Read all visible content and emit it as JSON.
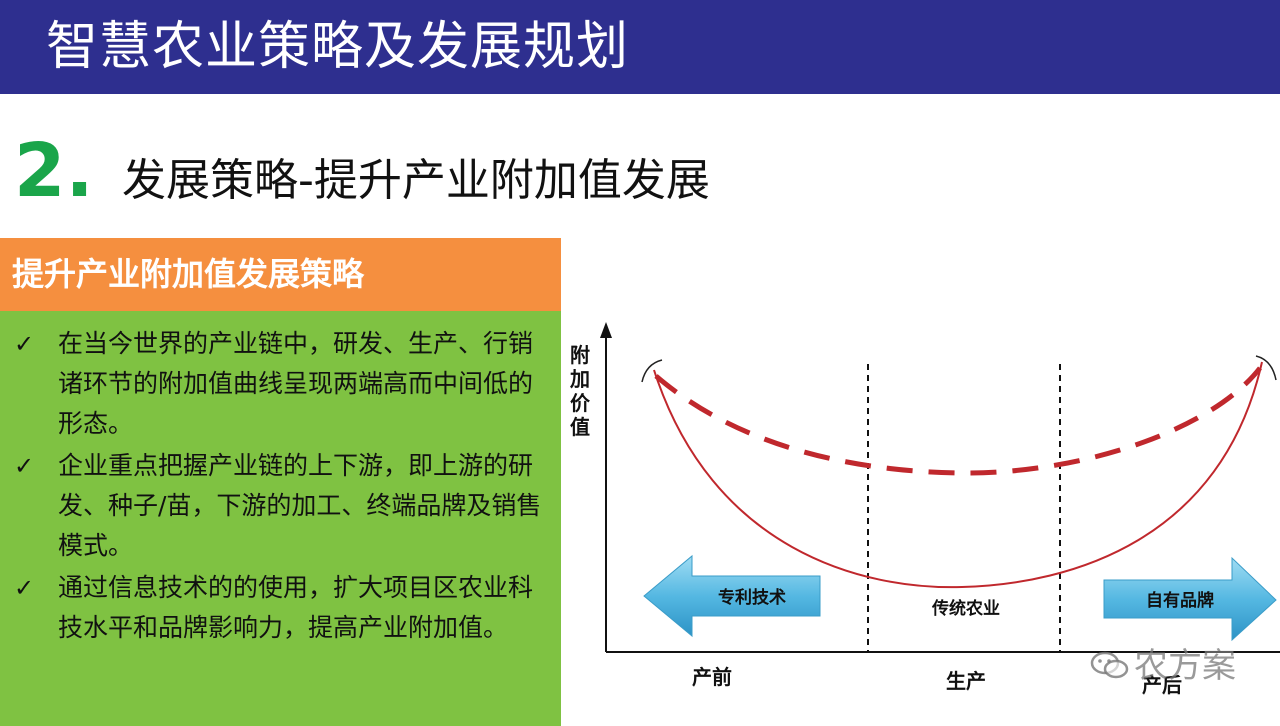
{
  "header": {
    "title": "智慧农业策略及发展规划"
  },
  "section": {
    "number": "2.",
    "title": "发展策略-提升产业附加值发展"
  },
  "strategy": {
    "heading": "提升产业附加值发展策略",
    "bullets": [
      "在当今世界的产业链中，研发、生产、行销诸环节的附加值曲线呈现两端高而中间低的形态。",
      "企业重点把握产业链的上下游，即上游的研发、种子/苗，下游的加工、终端品牌及销售模式。",
      "通过信息技术的的使用，扩大项目区农业科技水平和品牌影响力，提高产业附加值。"
    ]
  },
  "diagram": {
    "y_axis_label": [
      "附",
      "加",
      "价",
      "值"
    ],
    "left_arrow_label": "专利技术",
    "center_label": "传统农业",
    "right_arrow_label": "自有品牌",
    "x_labels": [
      "产前",
      "生产",
      "产后"
    ],
    "colors": {
      "curve": "#c0282d",
      "arrow_fill": "#3aa8d8",
      "arrow_light": "#8fd2ee"
    }
  },
  "watermark": {
    "text": "农方案"
  },
  "colors": {
    "header_bg": "#2e2f8f",
    "section_number": "#1aa54a",
    "strategy_header_bg": "#f58f3f",
    "strategy_body_bg": "#7fc242"
  }
}
